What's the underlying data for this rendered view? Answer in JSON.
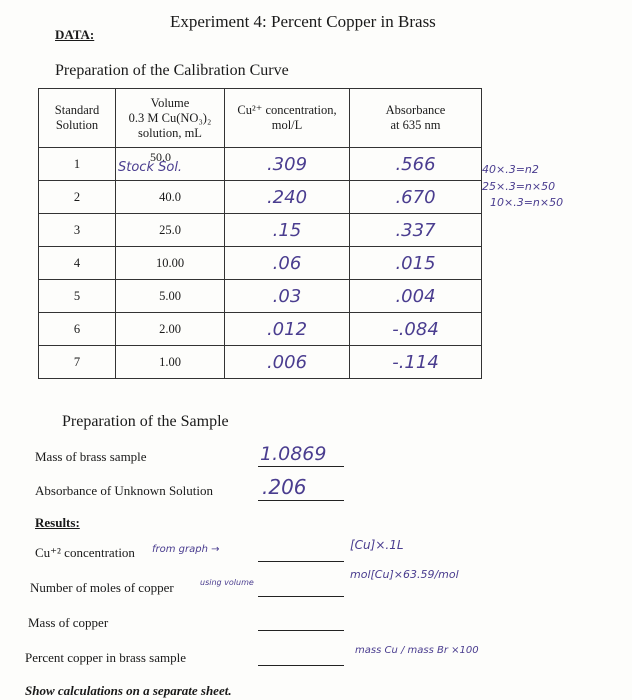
{
  "header": {
    "title": "Experiment 4: Percent Copper in Brass",
    "data_label": "DATA:"
  },
  "calibration": {
    "title": "Preparation of the Calibration Curve",
    "columns": [
      [
        "Standard",
        "Solution"
      ],
      [
        "Volume",
        "0.3 M Cu(NO₃)₂",
        "solution, mL"
      ],
      [
        "Cu²⁺ concentration,",
        "mol/L"
      ],
      [
        "Absorbance",
        "at 635 nm"
      ]
    ],
    "rows": [
      [
        "1",
        "50.0",
        ".309",
        ".566"
      ],
      [
        "2",
        "40.0",
        ".240",
        ".670"
      ],
      [
        "3",
        "25.0",
        ".15",
        ".337"
      ],
      [
        "4",
        "10.00",
        ".06",
        ".015"
      ],
      [
        "5",
        "5.00",
        ".03",
        ".004"
      ],
      [
        "6",
        "2.00",
        ".012",
        "-.084"
      ],
      [
        "7",
        "1.00",
        ".006",
        "-.114"
      ]
    ],
    "row_note": "Stock Sol.",
    "margin_notes": [
      "40×.3=n2",
      "25×.3=n×50",
      "10×.3=n×50"
    ]
  },
  "sample": {
    "title": "Preparation of the Sample",
    "fields": [
      {
        "label": "Mass of brass sample",
        "value": "1.0869"
      },
      {
        "label": "Absorbance of Unknown Solution",
        "value": ".206"
      }
    ]
  },
  "results": {
    "title": "Results:",
    "items": [
      {
        "label": "Cu⁺² concentration",
        "note": "from graph →",
        "answer_note": "[Cu]×.1L"
      },
      {
        "label": "Number of moles of copper",
        "note": "using volume",
        "answer_note": "mol[Cu]×63.59/mol"
      },
      {
        "label": "Mass of copper"
      },
      {
        "label": "Percent copper in brass sample",
        "answer_note": "mass Cu / mass Br ×100"
      }
    ]
  },
  "footer": "Show calculations on a separate sheet."
}
